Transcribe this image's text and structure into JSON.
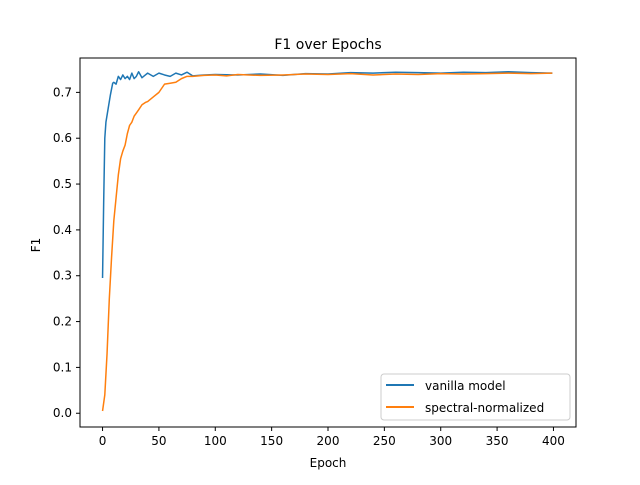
{
  "chart_data": {
    "type": "line",
    "title": "F1 over Epochs",
    "xlabel": "Epoch",
    "ylabel": "F1",
    "xlim": [
      -20,
      420
    ],
    "ylim": [
      -0.03,
      0.775
    ],
    "xticks": [
      0,
      50,
      100,
      150,
      200,
      250,
      300,
      350,
      400
    ],
    "yticks": [
      0.0,
      0.1,
      0.2,
      0.3,
      0.4,
      0.5,
      0.6,
      0.7
    ],
    "xtick_labels": [
      "0",
      "50",
      "100",
      "150",
      "200",
      "250",
      "300",
      "350",
      "400"
    ],
    "ytick_labels": [
      "0.0",
      "0.1",
      "0.2",
      "0.3",
      "0.4",
      "0.5",
      "0.6",
      "0.7"
    ],
    "grid": false,
    "legend_position": "lower-right",
    "series": [
      {
        "name": "vanilla model",
        "color": "#1f77b4",
        "x": [
          0,
          1,
          2,
          3,
          5,
          7,
          9,
          10,
          12,
          14,
          16,
          18,
          20,
          22,
          24,
          26,
          28,
          30,
          32,
          35,
          38,
          40,
          45,
          50,
          55,
          60,
          65,
          70,
          75,
          80,
          90,
          100,
          120,
          140,
          160,
          180,
          200,
          220,
          240,
          260,
          280,
          300,
          320,
          340,
          360,
          380,
          399
        ],
        "y": [
          0.295,
          0.46,
          0.6,
          0.635,
          0.665,
          0.695,
          0.72,
          0.722,
          0.718,
          0.735,
          0.728,
          0.738,
          0.73,
          0.735,
          0.728,
          0.742,
          0.73,
          0.735,
          0.745,
          0.732,
          0.738,
          0.742,
          0.735,
          0.742,
          0.738,
          0.735,
          0.742,
          0.738,
          0.744,
          0.736,
          0.738,
          0.739,
          0.738,
          0.74,
          0.737,
          0.741,
          0.74,
          0.743,
          0.742,
          0.744,
          0.743,
          0.742,
          0.744,
          0.743,
          0.745,
          0.743,
          0.742
        ]
      },
      {
        "name": "spectral-normalized",
        "color": "#ff7f0e",
        "x": [
          0,
          2,
          4,
          6,
          8,
          10,
          12,
          14,
          16,
          18,
          20,
          22,
          24,
          26,
          28,
          30,
          32,
          35,
          38,
          40,
          45,
          50,
          55,
          60,
          65,
          70,
          75,
          80,
          90,
          100,
          110,
          120,
          140,
          160,
          180,
          200,
          220,
          240,
          260,
          280,
          300,
          320,
          340,
          360,
          380,
          399
        ],
        "y": [
          0.005,
          0.04,
          0.13,
          0.25,
          0.34,
          0.42,
          0.47,
          0.52,
          0.555,
          0.572,
          0.585,
          0.61,
          0.628,
          0.635,
          0.648,
          0.655,
          0.662,
          0.673,
          0.678,
          0.68,
          0.69,
          0.7,
          0.718,
          0.72,
          0.722,
          0.73,
          0.735,
          0.735,
          0.737,
          0.738,
          0.736,
          0.739,
          0.737,
          0.738,
          0.74,
          0.739,
          0.741,
          0.738,
          0.74,
          0.739,
          0.741,
          0.74,
          0.741,
          0.742,
          0.741,
          0.742
        ]
      }
    ]
  }
}
